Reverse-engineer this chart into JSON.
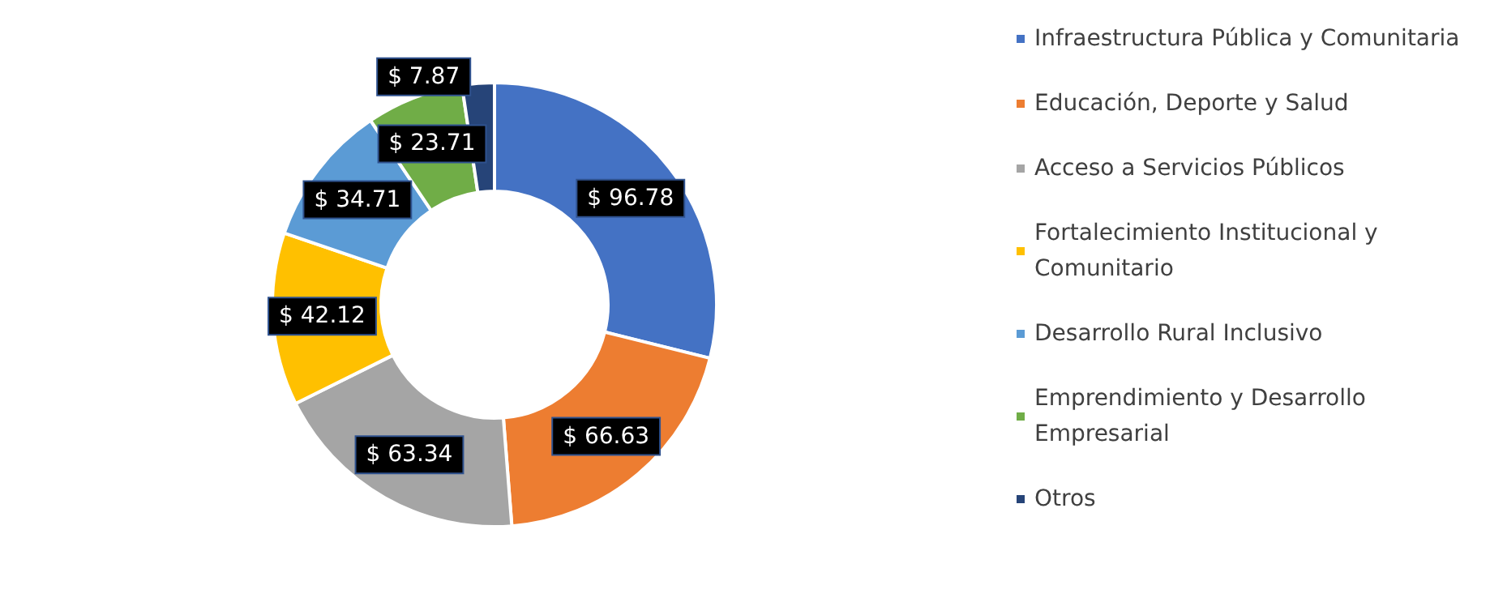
{
  "chart_data": {
    "type": "donut",
    "categories": [
      "Infraestructura Pública y Comunitaria",
      "Educación, Deporte y Salud",
      "Acceso a Servicios Públicos",
      "Fortalecimiento Institucional y Comunitario",
      "Desarrollo Rural Inclusivo",
      "Emprendimiento y Desarrollo Empresarial",
      "Otros"
    ],
    "values": [
      96.78,
      66.63,
      63.34,
      42.12,
      34.71,
      23.71,
      7.87
    ],
    "value_labels": [
      "$ 96.78",
      "$ 66.63",
      "$ 63.34",
      "$ 42.12",
      "$ 34.71",
      "$ 23.71",
      "$ 7.87"
    ],
    "colors": [
      "#4472c4",
      "#ed7d31",
      "#a5a5a5",
      "#ffc000",
      "#5b9bd5",
      "#70ad47",
      "#264478"
    ],
    "legend": "right"
  }
}
